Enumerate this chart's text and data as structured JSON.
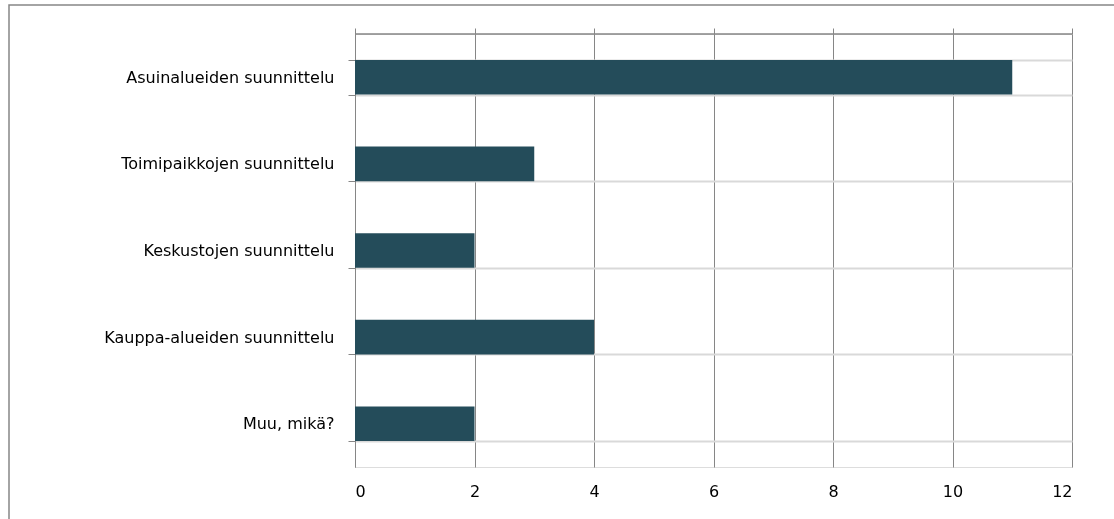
{
  "chart_data": {
    "type": "bar",
    "orientation": "horizontal",
    "categories": [
      "Asuinalueiden suunnittelu",
      "Toimipaikkojen suunnittelu",
      "Keskustojen suunnittelu",
      "Kauppa-alueiden suunnittelu",
      "Muu, mikä?"
    ],
    "values": [
      11,
      3,
      2,
      4,
      2
    ],
    "color": "#244c5a",
    "xlim": [
      0,
      12
    ],
    "xticks": [
      0,
      2,
      4,
      6,
      8,
      10,
      12
    ],
    "grid": true,
    "legend": false
  }
}
